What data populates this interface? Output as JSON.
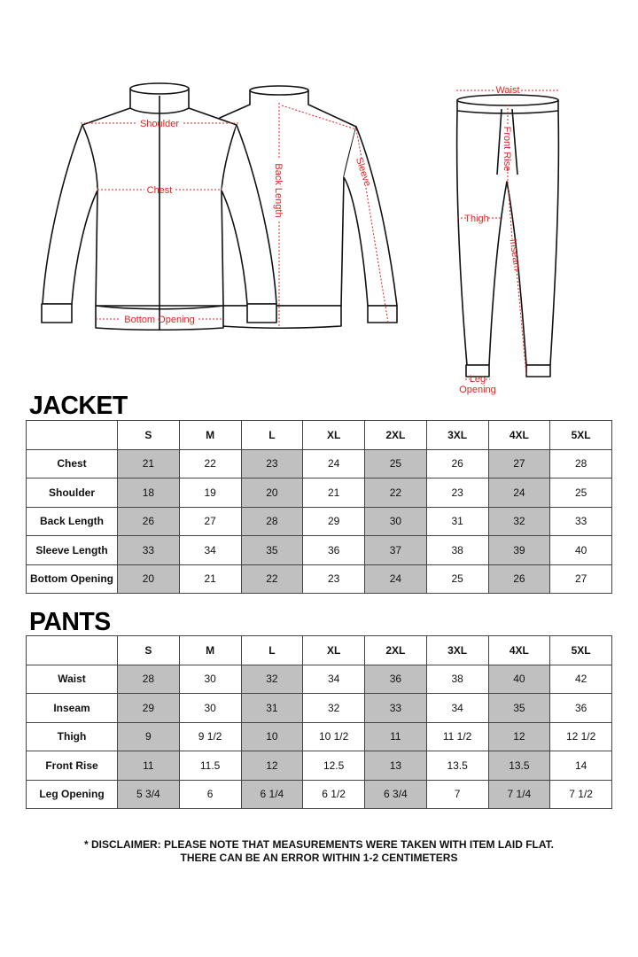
{
  "diagram": {
    "accent_color": "#e8201f",
    "jacket_labels": {
      "shoulder": "Shoulder",
      "chest": "Chest",
      "bottom_opening": "Bottom Opening",
      "back_length": "Back Length",
      "sleeve": "Sleeve"
    },
    "pants_labels": {
      "waist": "Waist",
      "front_rise": "Front Rise",
      "thigh": "Thigh",
      "inseam": "Inseam",
      "leg_opening_1": "Leg",
      "leg_opening_2": "Opening"
    }
  },
  "jacket": {
    "title": "JACKET",
    "sizes": [
      "S",
      "M",
      "L",
      "XL",
      "2XL",
      "3XL",
      "4XL",
      "5XL"
    ],
    "rows": [
      {
        "label": "Chest",
        "values": [
          "21",
          "22",
          "23",
          "24",
          "25",
          "26",
          "27",
          "28"
        ]
      },
      {
        "label": "Shoulder",
        "values": [
          "18",
          "19",
          "20",
          "21",
          "22",
          "23",
          "24",
          "25"
        ]
      },
      {
        "label": "Back Length",
        "values": [
          "26",
          "27",
          "28",
          "29",
          "30",
          "31",
          "32",
          "33"
        ]
      },
      {
        "label": "Sleeve Length",
        "values": [
          "33",
          "34",
          "35",
          "36",
          "37",
          "38",
          "39",
          "40"
        ]
      },
      {
        "label": "Bottom Opening",
        "values": [
          "20",
          "21",
          "22",
          "23",
          "24",
          "25",
          "26",
          "27"
        ]
      }
    ]
  },
  "pants": {
    "title": "PANTS",
    "sizes": [
      "S",
      "M",
      "L",
      "XL",
      "2XL",
      "3XL",
      "4XL",
      "5XL"
    ],
    "rows": [
      {
        "label": "Waist",
        "values": [
          "28",
          "30",
          "32",
          "34",
          "36",
          "38",
          "40",
          "42"
        ]
      },
      {
        "label": "Inseam",
        "values": [
          "29",
          "30",
          "31",
          "32",
          "33",
          "34",
          "35",
          "36"
        ]
      },
      {
        "label": "Thigh",
        "values": [
          "9",
          "9 1/2",
          "10",
          "10 1/2",
          "11",
          "11 1/2",
          "12",
          "12 1/2"
        ]
      },
      {
        "label": "Front Rise",
        "values": [
          "11",
          "11.5",
          "12",
          "12.5",
          "13",
          "13.5",
          "13.5",
          "14"
        ]
      },
      {
        "label": "Leg Opening",
        "values": [
          "5 3/4",
          "6",
          "6 1/4",
          "6 1/2",
          "6 3/4",
          "7",
          "7 1/4",
          "7 1/2"
        ]
      }
    ]
  },
  "shade_color": "#c0c0c0",
  "disclaimer": {
    "line1": "* DISCLAIMER: PLEASE NOTE THAT MEASUREMENTS WERE TAKEN WITH ITEM LAID FLAT.",
    "line2": "THERE CAN BE AN ERROR WITHIN 1-2 CENTIMETERS"
  }
}
